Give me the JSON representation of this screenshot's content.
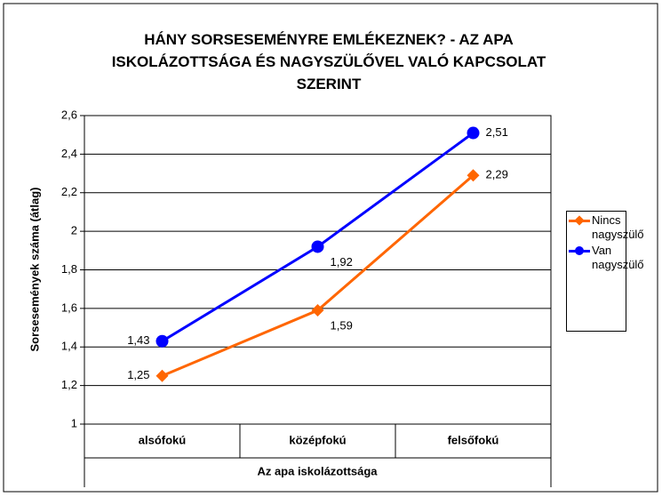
{
  "chart_data": {
    "type": "line",
    "title": "HÁNY SORSESEMÉNYRE EMLÉKEZNEK? - AZ APA ISKOLÁZOTTSÁGA ÉS NAGYSZÜLŐVEL VALÓ KAPCSOLAT SZERINT",
    "x_label": "Az apa iskolázottsága",
    "y_label": "Sorsesemények száma (átlag)",
    "categories": [
      "alsófokú",
      "középfokú",
      "felsőfokú"
    ],
    "series": [
      {
        "name": "Nincs nagyszülő",
        "color": "#ff6600",
        "marker": "diamond",
        "values": [
          1.25,
          1.59,
          2.29
        ],
        "value_labels": [
          "1,25",
          "1,59",
          "2,29"
        ]
      },
      {
        "name": "Van nagyszülő",
        "color": "#0000ff",
        "marker": "circle",
        "values": [
          1.43,
          1.92,
          2.51
        ],
        "value_labels": [
          "1,43",
          "1,92",
          "2,51"
        ]
      }
    ],
    "ylim": [
      1,
      2.6
    ],
    "yticks": [
      1,
      {
        "value": 1.2,
        "label": "1,2"
      },
      {
        "value": 1.4,
        "label": "1,4"
      },
      {
        "value": 1.6,
        "label": "1,6"
      },
      {
        "value": 1.8,
        "label": "1,8"
      },
      2,
      {
        "value": 2.2,
        "label": "2,2"
      },
      {
        "value": 2.4,
        "label": "2,4"
      },
      {
        "value": 2.6,
        "label": "2,6"
      }
    ],
    "grid": true
  }
}
